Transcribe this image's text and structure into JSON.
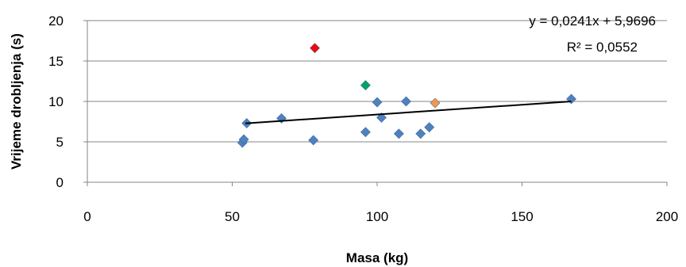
{
  "chart_data": {
    "type": "scatter",
    "xlabel": "Masa (kg)",
    "ylabel": "Vrijeme drobljenja (s)",
    "xlim": [
      0,
      200
    ],
    "ylim": [
      0,
      20
    ],
    "xticks": [
      "0",
      "50",
      "100",
      "150",
      "200"
    ],
    "yticks": [
      "0",
      "5",
      "10",
      "15",
      "20"
    ],
    "grid": "horizontal",
    "points": [
      {
        "x": 53.5,
        "y": 4.9,
        "color": "#4f81bd"
      },
      {
        "x": 54,
        "y": 5.3,
        "color": "#4f81bd"
      },
      {
        "x": 55,
        "y": 7.3,
        "color": "#4f81bd"
      },
      {
        "x": 67,
        "y": 7.9,
        "color": "#4f81bd"
      },
      {
        "x": 78,
        "y": 5.2,
        "color": "#4f81bd"
      },
      {
        "x": 78.5,
        "y": 16.6,
        "color": "#ff0000"
      },
      {
        "x": 96,
        "y": 6.2,
        "color": "#4f81bd"
      },
      {
        "x": 96,
        "y": 12.0,
        "color": "#00a65a"
      },
      {
        "x": 100,
        "y": 9.9,
        "color": "#4f81bd"
      },
      {
        "x": 101.5,
        "y": 8.0,
        "color": "#4f81bd"
      },
      {
        "x": 107.5,
        "y": 6.0,
        "color": "#4f81bd"
      },
      {
        "x": 110,
        "y": 10.0,
        "color": "#4f81bd"
      },
      {
        "x": 115,
        "y": 6.0,
        "color": "#4f81bd"
      },
      {
        "x": 118,
        "y": 6.8,
        "color": "#4f81bd"
      },
      {
        "x": 120,
        "y": 9.8,
        "color": "#f79646"
      },
      {
        "x": 167,
        "y": 10.3,
        "color": "#4f81bd"
      }
    ],
    "trendline": {
      "slope": 0.0241,
      "intercept": 5.9696,
      "x_range": [
        54.5,
        167
      ]
    },
    "equation": "y = 0,0241x + 5,9696",
    "r_squared": "R² = 0,0552"
  }
}
